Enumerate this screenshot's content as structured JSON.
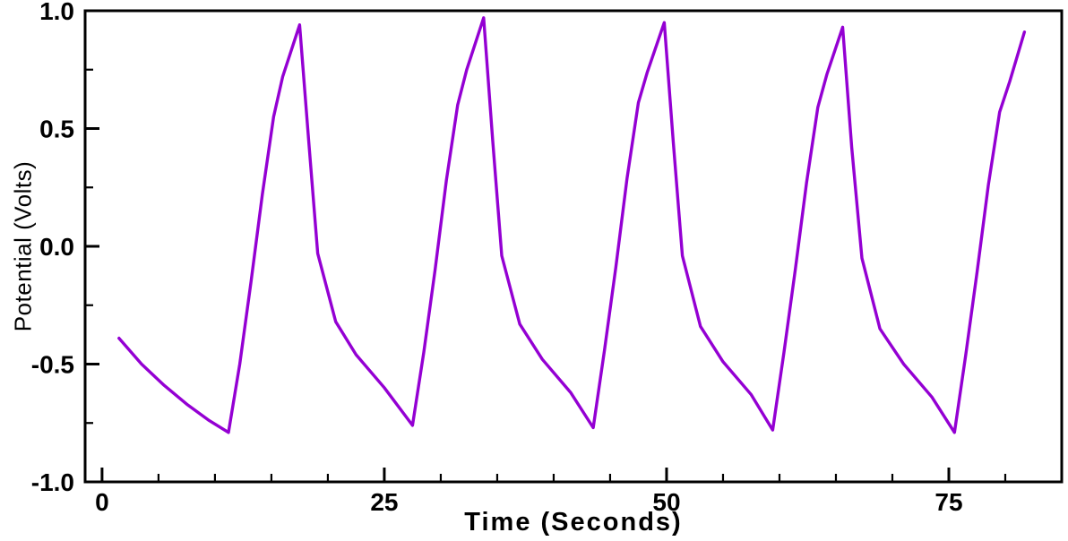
{
  "chart_data": {
    "type": "line",
    "title": "",
    "xlabel": "Time (Seconds)",
    "ylabel": "Potential (Volts)",
    "xlim": [
      -1.5,
      85
    ],
    "ylim": [
      -1.0,
      1.0
    ],
    "x_major_ticks": [
      0,
      25,
      50,
      75
    ],
    "x_tick_labels": [
      "0",
      "25",
      "50",
      "75"
    ],
    "x_minor_step": 5,
    "y_major_ticks": [
      -1.0,
      -0.5,
      0.0,
      0.5,
      1.0
    ],
    "y_tick_labels": [
      "-1.0",
      "-0.5",
      "0.0",
      "0.5",
      "1.0"
    ],
    "y_minor_step": 0.25,
    "grid": "off",
    "legend": "none",
    "line_color": "#9400D3",
    "axis_color": "#000000",
    "series": [
      {
        "name": "Potential",
        "points": [
          [
            1.5,
            -0.39
          ],
          [
            3.5,
            -0.5
          ],
          [
            5.5,
            -0.59
          ],
          [
            7.5,
            -0.67
          ],
          [
            9.5,
            -0.74
          ],
          [
            11.2,
            -0.79
          ],
          [
            12.2,
            -0.5
          ],
          [
            13.2,
            -0.15
          ],
          [
            14.2,
            0.22
          ],
          [
            15.2,
            0.55
          ],
          [
            16.0,
            0.72
          ],
          [
            17.5,
            0.94
          ],
          [
            18.3,
            0.45
          ],
          [
            19.1,
            -0.03
          ],
          [
            20.7,
            -0.32
          ],
          [
            22.5,
            -0.46
          ],
          [
            25.0,
            -0.6
          ],
          [
            27.5,
            -0.76
          ],
          [
            28.5,
            -0.45
          ],
          [
            29.5,
            -0.1
          ],
          [
            30.5,
            0.28
          ],
          [
            31.5,
            0.6
          ],
          [
            32.3,
            0.75
          ],
          [
            33.8,
            0.97
          ],
          [
            34.6,
            0.45
          ],
          [
            35.4,
            -0.04
          ],
          [
            37.0,
            -0.33
          ],
          [
            39.0,
            -0.48
          ],
          [
            41.5,
            -0.62
          ],
          [
            43.5,
            -0.77
          ],
          [
            44.5,
            -0.44
          ],
          [
            45.5,
            -0.09
          ],
          [
            46.5,
            0.29
          ],
          [
            47.5,
            0.61
          ],
          [
            48.3,
            0.74
          ],
          [
            49.8,
            0.95
          ],
          [
            50.6,
            0.44
          ],
          [
            51.4,
            -0.04
          ],
          [
            53.0,
            -0.34
          ],
          [
            55.0,
            -0.49
          ],
          [
            57.5,
            -0.63
          ],
          [
            59.4,
            -0.78
          ],
          [
            60.4,
            -0.45
          ],
          [
            61.4,
            -0.1
          ],
          [
            62.4,
            0.27
          ],
          [
            63.4,
            0.59
          ],
          [
            64.2,
            0.73
          ],
          [
            65.6,
            0.93
          ],
          [
            66.4,
            0.42
          ],
          [
            67.3,
            -0.05
          ],
          [
            68.9,
            -0.35
          ],
          [
            71.0,
            -0.5
          ],
          [
            73.5,
            -0.64
          ],
          [
            75.5,
            -0.79
          ],
          [
            76.5,
            -0.46
          ],
          [
            77.5,
            -0.11
          ],
          [
            78.5,
            0.26
          ],
          [
            79.5,
            0.57
          ],
          [
            80.4,
            0.7
          ],
          [
            81.7,
            0.91
          ]
        ]
      }
    ]
  }
}
